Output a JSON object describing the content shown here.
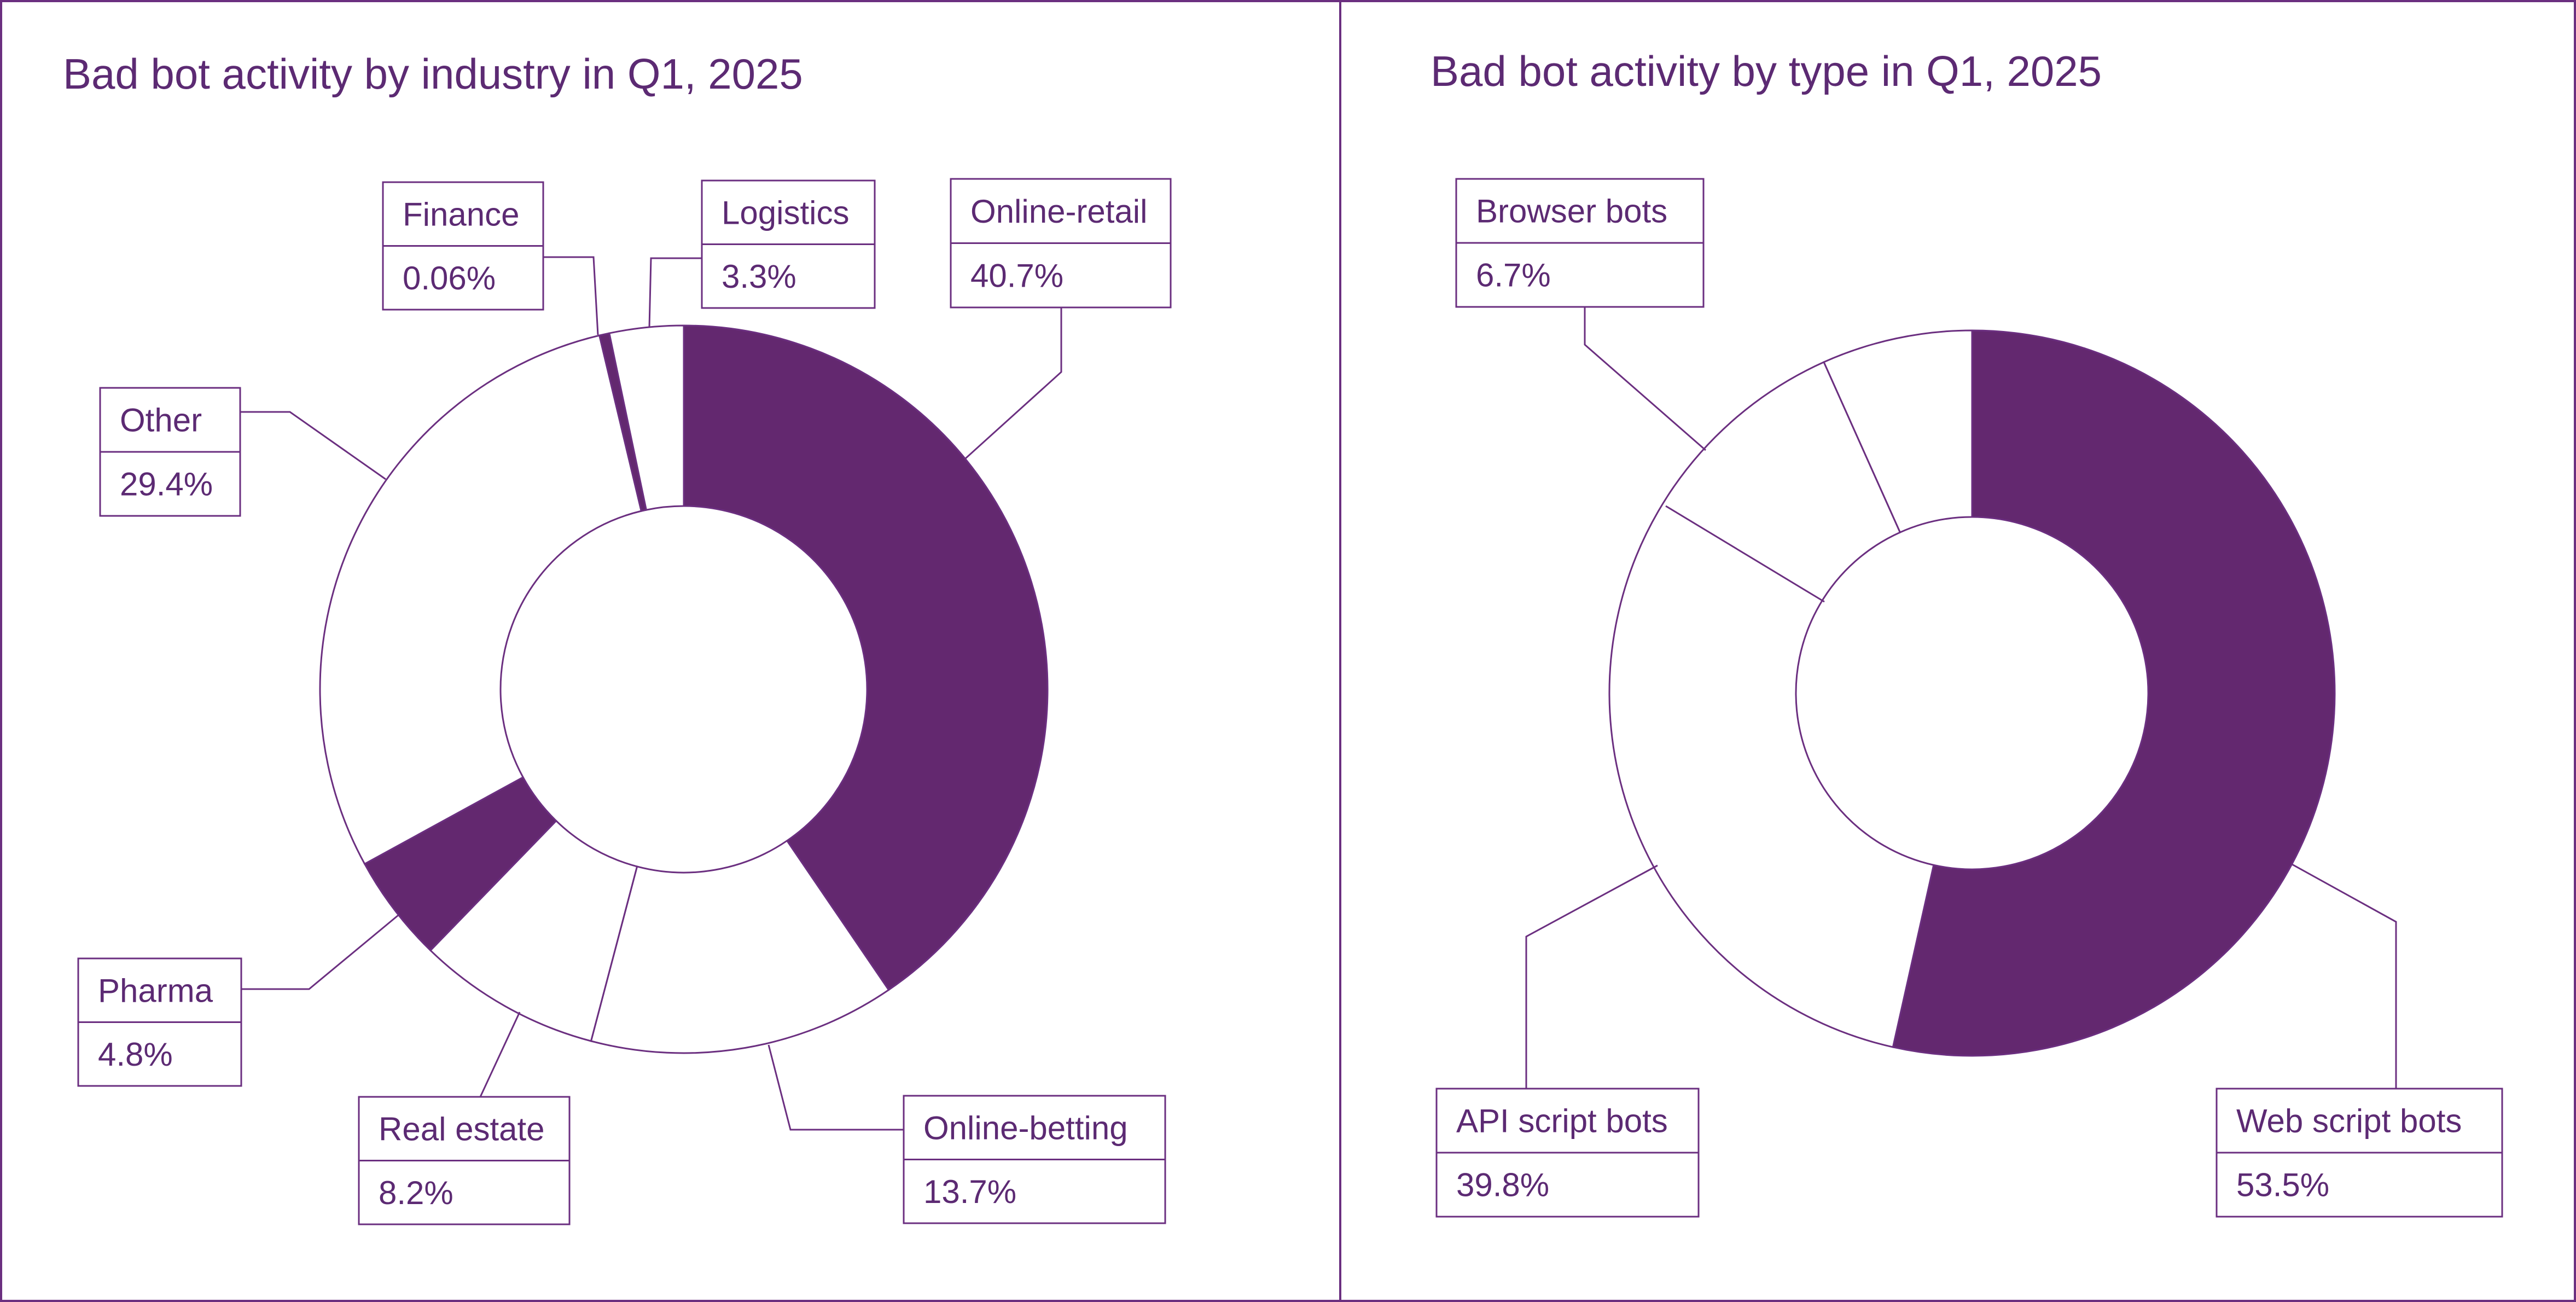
{
  "colors": {
    "accent": "#63286f",
    "line": "#6b2f80",
    "text": "#5c2a73",
    "background": "#ffffff"
  },
  "chart_data": [
    {
      "type": "pie",
      "donut": true,
      "title": "Bad bot activity by industry in Q1, 2025",
      "slices": [
        {
          "label": "Online-retail",
          "value": 40.7,
          "display": "40.7%",
          "highlight": true
        },
        {
          "label": "Online-betting",
          "value": 13.7,
          "display": "13.7%",
          "highlight": false
        },
        {
          "label": "Real estate",
          "value": 8.2,
          "display": "8.2%",
          "highlight": false
        },
        {
          "label": "Pharma",
          "value": 4.8,
          "display": "4.8%",
          "highlight": true
        },
        {
          "label": "Other",
          "value": 29.4,
          "display": "29.4%",
          "highlight": false
        },
        {
          "label": "Finance",
          "value": 0.06,
          "display": "0.06%",
          "highlight": true
        },
        {
          "label": "Logistics",
          "value": 3.3,
          "display": "3.3%",
          "highlight": false
        }
      ]
    },
    {
      "type": "pie",
      "donut": true,
      "title": "Bad bot activity by type in Q1, 2025",
      "slices": [
        {
          "label": "Web script bots",
          "value": 53.5,
          "display": "53.5%",
          "highlight": true
        },
        {
          "label": "API script bots",
          "value": 39.8,
          "display": "39.8%",
          "highlight": false
        },
        {
          "label": "Browser bots",
          "value": 6.7,
          "display": "6.7%",
          "highlight": false
        }
      ]
    }
  ]
}
